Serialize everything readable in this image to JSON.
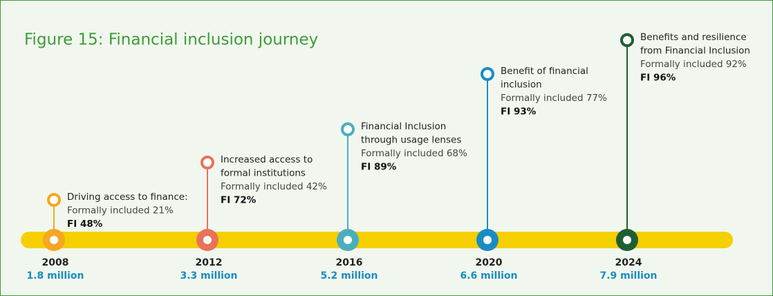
{
  "title": "Figure 15: Financial inclusion journey",
  "milestones": [
    {
      "year": "2008",
      "population": "1.8 million",
      "heading": [
        "Driving access to finance:"
      ],
      "formal": "Formally included 21%",
      "fi": "FI 48%"
    },
    {
      "year": "2012",
      "population": "3.3 million",
      "heading": [
        "Increased access to",
        "formal institutions"
      ],
      "formal": "Formally included 42%",
      "fi": "FI 72%"
    },
    {
      "year": "2016",
      "population": "5.2 million",
      "heading": [
        "Financial Inclusion",
        "through usage lenses"
      ],
      "formal": "Formally included 68%",
      "fi": "FI 89%"
    },
    {
      "year": "2020",
      "population": "6.6 million",
      "heading": [
        "Benefit of financial",
        "inclusion"
      ],
      "formal": "Formally included 77%",
      "fi": "FI 93%"
    },
    {
      "year": "2024",
      "population": "7.9 million",
      "heading": [
        "Benefits and resilience",
        "from Financial Inclusion"
      ],
      "formal": "Formally included 92%",
      "fi": "FI 96%"
    }
  ]
}
